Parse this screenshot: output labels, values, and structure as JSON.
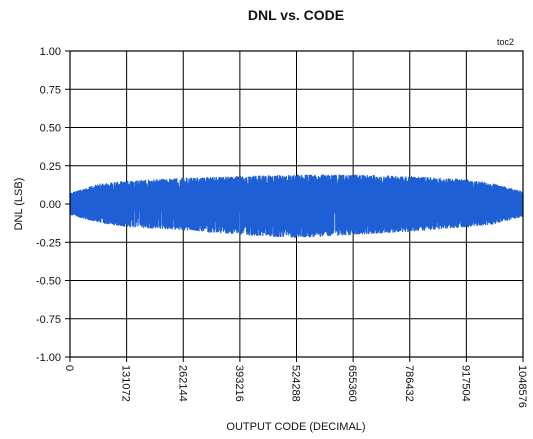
{
  "chart_data": {
    "type": "line",
    "title": "DNL vs. CODE",
    "annotation": "toc2",
    "xlabel": "OUTPUT CODE (DECIMAL)",
    "ylabel": "DNL (LSB)",
    "xlim": [
      0,
      1048576
    ],
    "ylim": [
      -1.0,
      1.0
    ],
    "x_ticks": [
      0,
      131072,
      262144,
      393216,
      524288,
      655360,
      786432,
      917504,
      1048576
    ],
    "x_tick_labels": [
      "0",
      "131072",
      "262144",
      "393216",
      "524288",
      "655360",
      "786432",
      "917504",
      "1048576"
    ],
    "y_ticks": [
      1.0,
      0.75,
      0.5,
      0.25,
      0.0,
      -0.25,
      -0.5,
      -0.75,
      -1.0
    ],
    "y_tick_labels": [
      "1.00",
      "0.75",
      "0.50",
      "0.25",
      "0.00",
      "-0.25",
      "-0.50",
      "-0.75",
      "-1.00"
    ],
    "grid": true,
    "series": [
      {
        "color": "#1f5fd6",
        "envelope": {
          "x": [
            0,
            65536,
            131072,
            262144,
            393216,
            524288,
            655360,
            786432,
            917504,
            983040,
            1048576
          ],
          "upper": [
            0.07,
            0.13,
            0.15,
            0.17,
            0.18,
            0.19,
            0.19,
            0.18,
            0.16,
            0.13,
            0.08
          ],
          "lower": [
            -0.07,
            -0.12,
            -0.15,
            -0.17,
            -0.2,
            -0.22,
            -0.2,
            -0.18,
            -0.15,
            -0.13,
            -0.08
          ]
        }
      }
    ]
  }
}
